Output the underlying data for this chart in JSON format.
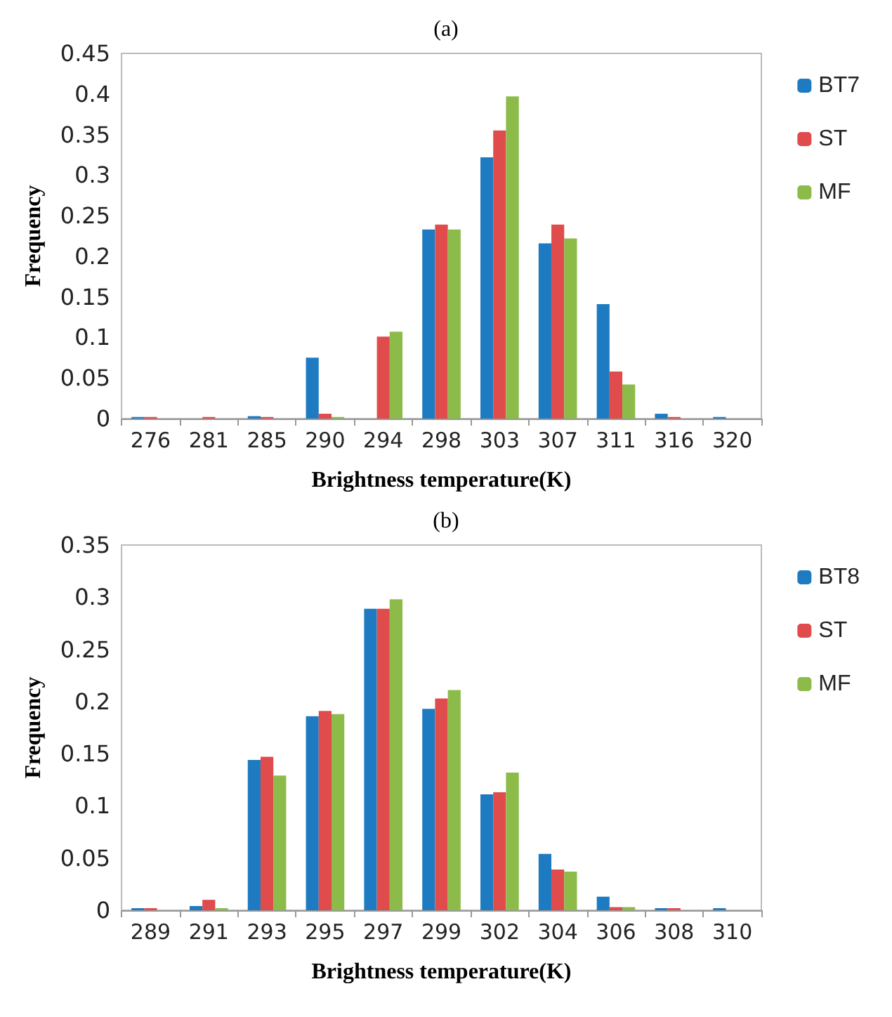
{
  "chart_data": [
    {
      "type": "bar",
      "title": "(a)",
      "xlabel": "Brightness temperature(K)",
      "ylabel": "Frequency",
      "categories": [
        "276",
        "281",
        "285",
        "290",
        "294",
        "298",
        "303",
        "307",
        "311",
        "316",
        "320"
      ],
      "series": [
        {
          "name": "BT7",
          "color": "#1f7bc1",
          "values": [
            0.002,
            0,
            0.003,
            0.075,
            0,
            0.233,
            0.322,
            0.216,
            0.141,
            0.006,
            0.002
          ]
        },
        {
          "name": "ST",
          "color": "#e04b4b",
          "values": [
            0.002,
            0.002,
            0.002,
            0.006,
            0.101,
            0.239,
            0.355,
            0.239,
            0.058,
            0.002,
            0
          ]
        },
        {
          "name": "MF",
          "color": "#8cbb4a",
          "values": [
            0,
            0,
            0,
            0.002,
            0.107,
            0.233,
            0.397,
            0.222,
            0.042,
            0,
            0
          ]
        }
      ],
      "ylim": [
        0,
        0.45
      ],
      "yticks": [
        0,
        0.05,
        0.1,
        0.15,
        0.2,
        0.25,
        0.3,
        0.35,
        0.4,
        0.45
      ],
      "grid": false,
      "legend": "top right"
    },
    {
      "type": "bar",
      "title": "(b)",
      "xlabel": "Brightness temperature(K)",
      "ylabel": "Frequency",
      "categories": [
        "289",
        "291",
        "293",
        "295",
        "297",
        "299",
        "302",
        "304",
        "306",
        "308",
        "310"
      ],
      "series": [
        {
          "name": "BT8",
          "color": "#1f7bc1",
          "values": [
            0.002,
            0.004,
            0.144,
            0.186,
            0.289,
            0.193,
            0.111,
            0.054,
            0.013,
            0.002,
            0.002
          ]
        },
        {
          "name": "ST",
          "color": "#e04b4b",
          "values": [
            0.002,
            0.01,
            0.147,
            0.191,
            0.289,
            0.203,
            0.113,
            0.039,
            0.003,
            0.002,
            0
          ]
        },
        {
          "name": "MF",
          "color": "#8cbb4a",
          "values": [
            0,
            0.002,
            0.129,
            0.188,
            0.298,
            0.211,
            0.132,
            0.037,
            0.003,
            0,
            0
          ]
        }
      ],
      "ylim": [
        0,
        0.35
      ],
      "yticks": [
        0,
        0.05,
        0.1,
        0.15,
        0.2,
        0.25,
        0.3,
        0.35
      ],
      "grid": false,
      "legend": "top right"
    }
  ]
}
